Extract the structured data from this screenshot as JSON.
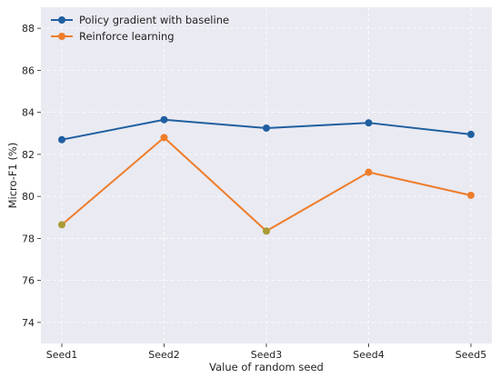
{
  "chart_data": {
    "type": "line",
    "xlabel": "Value of random seed",
    "ylabel": "Micro-F1 (%)",
    "categories": [
      "Seed1",
      "Seed2",
      "Seed3",
      "Seed4",
      "Seed5"
    ],
    "ylim": [
      73,
      89
    ],
    "yticks": [
      74,
      76,
      78,
      80,
      82,
      84,
      86,
      88
    ],
    "grid": true,
    "legend_position": "top-left",
    "series": [
      {
        "name": "Policy gradient with baseline",
        "color": "#1f5fa0",
        "values": [
          82.7,
          83.65,
          83.25,
          83.5,
          82.95
        ]
      },
      {
        "name": "Reinforce learning",
        "color": "#ee7d2b",
        "values": [
          78.65,
          82.8,
          78.35,
          81.15,
          80.05
        ]
      }
    ],
    "colors": {
      "plot_background": "#eaeaf2",
      "overlap_marker": "#a89b36"
    }
  }
}
